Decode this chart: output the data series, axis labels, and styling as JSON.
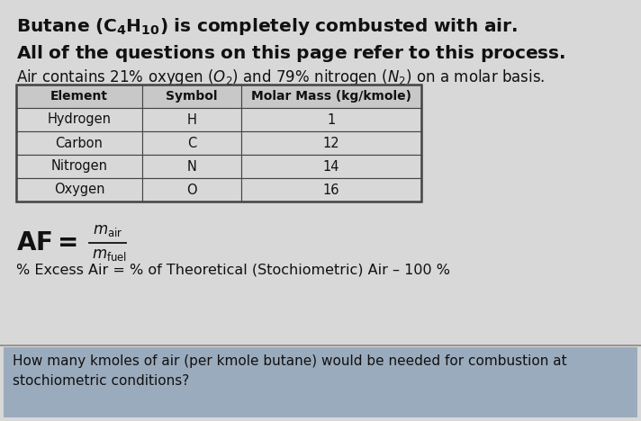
{
  "main_bg": "#d8d8d8",
  "bottom_bg": "#9aabbd",
  "text_color": "#111111",
  "table_header_bg": "#c8c8c8",
  "table_row_bg": "#d8d8d8",
  "table_border": "#444444",
  "title1": "$\\mathbf{Butane\\ (C_4H_{10})\\ is\\ completely\\ combusted\\ with\\ air.}$",
  "title2": "$\\mathbf{All\\ of\\ the\\ questions\\ on\\ this\\ page\\ refer\\ to\\ this\\ process.}$",
  "subtitle": "Air contains 21% oxygen ($O_2$) and 79% nitrogen ($N_2$) on a molar basis.",
  "table_headers": [
    "Element",
    "Symbol",
    "Molar Mass (kg/kmole)"
  ],
  "table_rows": [
    [
      "Hydrogen",
      "H",
      "1"
    ],
    [
      "Carbon",
      "C",
      "12"
    ],
    [
      "Nitrogen",
      "N",
      "14"
    ],
    [
      "Oxygen",
      "O",
      "16"
    ]
  ],
  "excess_air": "% Excess Air = % of Theoretical (Stochiometric) Air – 100 %",
  "question": "How many kmoles of air (per kmole butane) would be needed for combustion at\nstochiometric conditions?",
  "separator_color": "#888888",
  "bottom_text_color": "#111111"
}
